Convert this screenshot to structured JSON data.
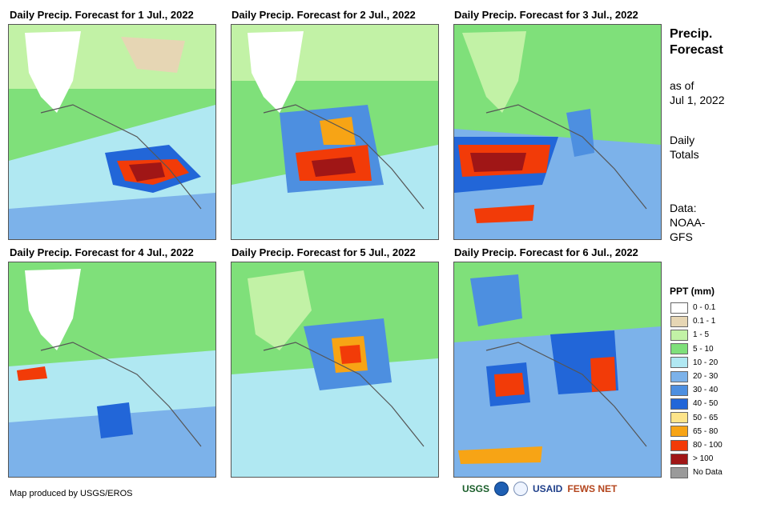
{
  "panels": [
    {
      "title": "Daily Precip. Forecast for 1 Jul., 2022"
    },
    {
      "title": "Daily Precip. Forecast for 2 Jul., 2022"
    },
    {
      "title": "Daily Precip. Forecast for 3 Jul., 2022"
    },
    {
      "title": "Daily Precip. Forecast for 4 Jul., 2022"
    },
    {
      "title": "Daily Precip. Forecast for 5 Jul., 2022"
    },
    {
      "title": "Daily Precip. Forecast for 6 Jul., 2022"
    }
  ],
  "sidebar": {
    "heading_line1": "Precip.",
    "heading_line2": "Forecast",
    "asof_line1": "as of",
    "asof_line2": "Jul 1, 2022",
    "daily_line1": "Daily",
    "daily_line2": "Totals",
    "data_line1": "Data:",
    "data_line2": "NOAA-",
    "data_line3": "GFS"
  },
  "legend": {
    "title": "PPT (mm)",
    "items": [
      {
        "label": "0 - 0.1",
        "color": "#ffffff"
      },
      {
        "label": "0.1 - 1",
        "color": "#e6d6b4"
      },
      {
        "label": "1 - 5",
        "color": "#c2f2a6"
      },
      {
        "label": "5 - 10",
        "color": "#7fe07a"
      },
      {
        "label": "10 - 20",
        "color": "#b0e8f2"
      },
      {
        "label": "20 - 30",
        "color": "#7cb2ea"
      },
      {
        "label": "30 - 40",
        "color": "#4d8fe0"
      },
      {
        "label": "40 - 50",
        "color": "#2266d8"
      },
      {
        "label": "50 - 65",
        "color": "#fde48a"
      },
      {
        "label": "65 - 80",
        "color": "#f7a415"
      },
      {
        "label": "80 - 100",
        "color": "#f23b08"
      },
      {
        "label": "> 100",
        "color": "#a01616"
      },
      {
        "label": "No Data",
        "color": "#9a9a9a"
      }
    ]
  },
  "footer": {
    "credit": "Map produced by USGS/EROS",
    "logos": [
      "USGS",
      "USAID",
      "FEWS NET"
    ]
  }
}
